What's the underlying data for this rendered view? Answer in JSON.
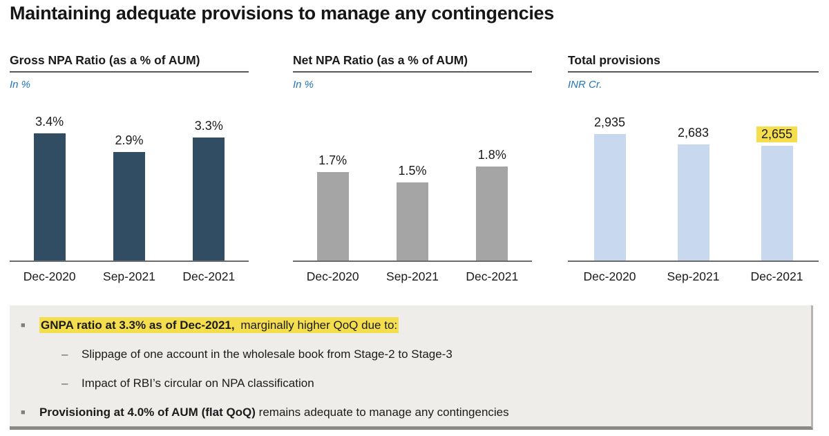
{
  "slide": {
    "title": "Maintaining adequate provisions to manage any contingencies"
  },
  "colors": {
    "unit_label_blue": "#1F75BA",
    "gross_npa_bar": "#304D64",
    "net_npa_bar": "#A5A5A5",
    "provisions_bar": "#C8D8EE",
    "highlight_yellow": "#F4DE4D",
    "rule_gray": "#595959",
    "notes_box_bg": "#EEEDEA"
  },
  "chart_data": [
    {
      "type": "bar",
      "title": "Gross NPA Ratio (as a % of AUM)",
      "unit_label": "In %",
      "categories": [
        "Dec-2020",
        "Sep-2021",
        "Dec-2021"
      ],
      "values": [
        3.4,
        2.9,
        3.3
      ],
      "value_labels": [
        "3.4%",
        "2.9%",
        "3.3%"
      ],
      "ylim": [
        0,
        3.7
      ],
      "bar_color": "#304D64",
      "grid": "off",
      "highlighted_label_index": -1
    },
    {
      "type": "bar",
      "title": "Net NPA Ratio (as a % of AUM)",
      "unit_label": "In %",
      "categories": [
        "Dec-2020",
        "Sep-2021",
        "Dec-2021"
      ],
      "values": [
        1.7,
        1.5,
        1.8
      ],
      "value_labels": [
        "1.7%",
        "1.5%",
        "1.8%"
      ],
      "ylim": [
        0,
        2.65
      ],
      "bar_color": "#A5A5A5",
      "grid": "off",
      "highlighted_label_index": -1
    },
    {
      "type": "bar",
      "title": "Total provisions",
      "unit_label": "INR Cr.",
      "categories": [
        "Dec-2020",
        "Sep-2021",
        "Dec-2021"
      ],
      "values": [
        2935,
        2683,
        2655
      ],
      "value_labels": [
        "2,935",
        "2,683",
        "2,655"
      ],
      "ylim": [
        0,
        3200
      ],
      "bar_color": "#C8D8EE",
      "grid": "off",
      "highlighted_label_index": 2
    }
  ],
  "notes": {
    "bullet_marker": "■",
    "sub_marker": "–",
    "bullets": [
      {
        "segments": [
          {
            "text": "GNPA ratio at 3.3% as of Dec-2021,",
            "bold": true,
            "highlight": true
          },
          {
            "text": " marginally higher QoQ due to:",
            "bold": false,
            "highlight": true
          }
        ],
        "sub_items": [
          "Slippage of one account in the wholesale book from Stage-2 to Stage-3",
          "Impact of RBI’s circular on NPA classification"
        ]
      },
      {
        "segments": [
          {
            "text": "Provisioning at 4.0% of AUM (flat QoQ)",
            "bold": true,
            "highlight": false
          },
          {
            "text": " remains adequate to manage any contingencies",
            "bold": false,
            "highlight": false
          }
        ],
        "sub_items": []
      }
    ]
  }
}
